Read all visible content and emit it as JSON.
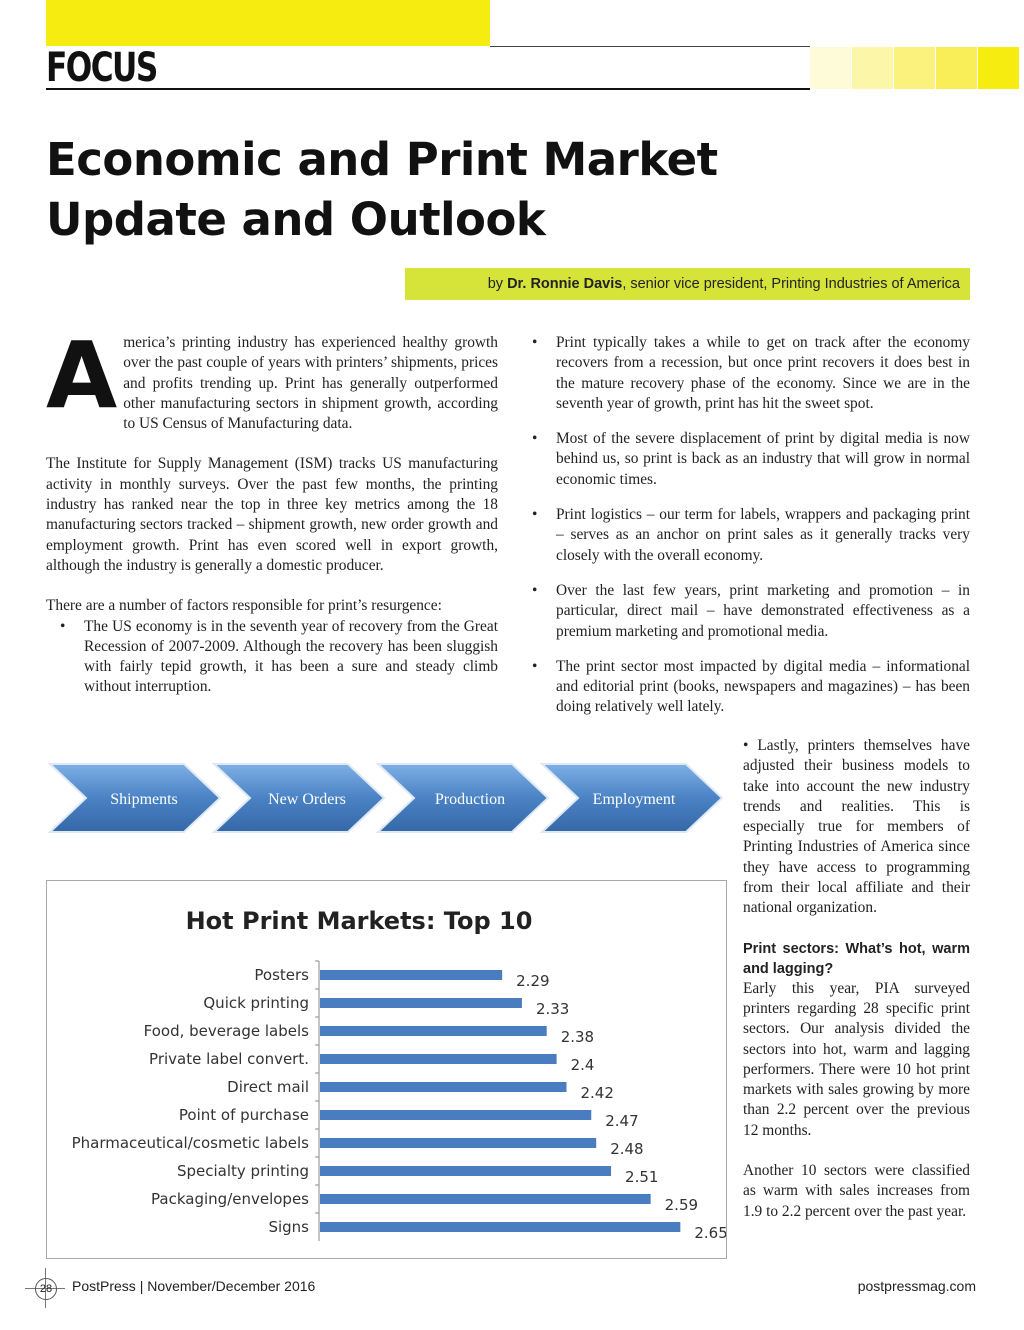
{
  "header": {
    "section_label": "FOCUS",
    "title_line1": "Economic and Print Market",
    "title_line2": "Update and Outlook",
    "byline_prefix": "by",
    "byline_author": "Dr. Ronnie Davis",
    "byline_role": ", senior vice president, Printing Industries of America",
    "swatch_colors": [
      "#fdfbd8",
      "#fcf6a8",
      "#fbf27e",
      "#f9ee58",
      "#f7ec10"
    ],
    "accent_color": "#f7ec10"
  },
  "left_column": {
    "dropcap": "A",
    "para1": "merica’s printing industry has experienced healthy growth over the past couple of years with printers’ shipments, prices and profits trending up. Print has generally outperformed other manufacturing sectors in shipment growth, according to US Census of Manufacturing data.",
    "para2": "The Institute for Supply Management (ISM) tracks US manufacturing activity in monthly surveys. Over the past few months, the printing industry has ranked near the top in three key metrics among the 18 manufacturing sectors tracked – shipment growth, new order growth and employment growth. Print has even scored well in export growth, although the industry is generally a domestic producer.",
    "para3": "There are a number of factors responsible for print’s resurgence:",
    "bullet1": "The US economy is in the seventh year of recovery from the Great Recession of 2007-2009. Although the recovery has been sluggish with fairly tepid growth, it has been a sure and steady climb without interruption."
  },
  "right_column": {
    "bullets": [
      "Print typically takes a while to get on track after the economy recovers from a recession, but once print recovers it does best in the mature recovery phase of the economy. Since we are in the seventh year of growth, print has hit the sweet spot.",
      "Most of the severe displacement of print by digital media is now behind us, so print is back as an industry that will grow in normal economic times.",
      "Print logistics – our term for labels, wrappers and packaging print – serves as an anchor on print sales as it generally tracks very closely with the overall economy.",
      "Over the last few years, print marketing and promotion – in particular, direct mail – have demonstrated effectiveness as a premium marketing and promotional media.",
      "The print sector most impacted by digital media – informational and editorial print (books, newspapers and magazines) – has been doing relatively well lately."
    ]
  },
  "side_column": {
    "bullet_last": "• Lastly, printers themselves have adjusted their business models to take into account the new industry trends and realities. This is especially true for members of Printing Industries of America since they have access to programming from their local affiliate and their national organization.",
    "subhead": "Print sectors: What’s hot, warm and lagging?",
    "para1": "Early this year, PIA surveyed printers regarding 28 specific print sectors. Our analysis divided the sectors into hot, warm and lagging performers. There were 10 hot print markets with sales growing by more than 2.2 percent over the previous 12 months.",
    "para2": "Another 10 sectors were classified as warm with sales increases from 1.9 to 2.2 percent over the past year."
  },
  "process_arrows": {
    "labels": [
      "Shipments",
      "New Orders",
      "Production",
      "Employment"
    ],
    "color": "#4a82c4"
  },
  "chart_data": {
    "type": "bar",
    "orientation": "horizontal",
    "title": "Hot Print Markets: Top 10",
    "categories": [
      "Posters",
      "Quick printing",
      "Food, beverage labels",
      "Private label convert.",
      "Direct mail",
      "Point of purchase",
      "Pharmaceutical/cosmetic labels",
      "Specialty printing",
      "Packaging/envelopes",
      "Signs"
    ],
    "values": [
      2.29,
      2.33,
      2.38,
      2.4,
      2.42,
      2.47,
      2.48,
      2.51,
      2.59,
      2.65
    ],
    "value_labels": [
      "2.29",
      "2.33",
      "2.38",
      "2.4",
      "2.42",
      "2.47",
      "2.48",
      "2.51",
      "2.59",
      "2.65"
    ],
    "xlim": [
      1.92,
      2.72
    ],
    "bar_color": "#4a7dc0",
    "grid": false,
    "legend": "none"
  },
  "footer": {
    "page_number": "28",
    "publication": "PostPress | November/December 2016",
    "website": "postpressmag.com"
  }
}
